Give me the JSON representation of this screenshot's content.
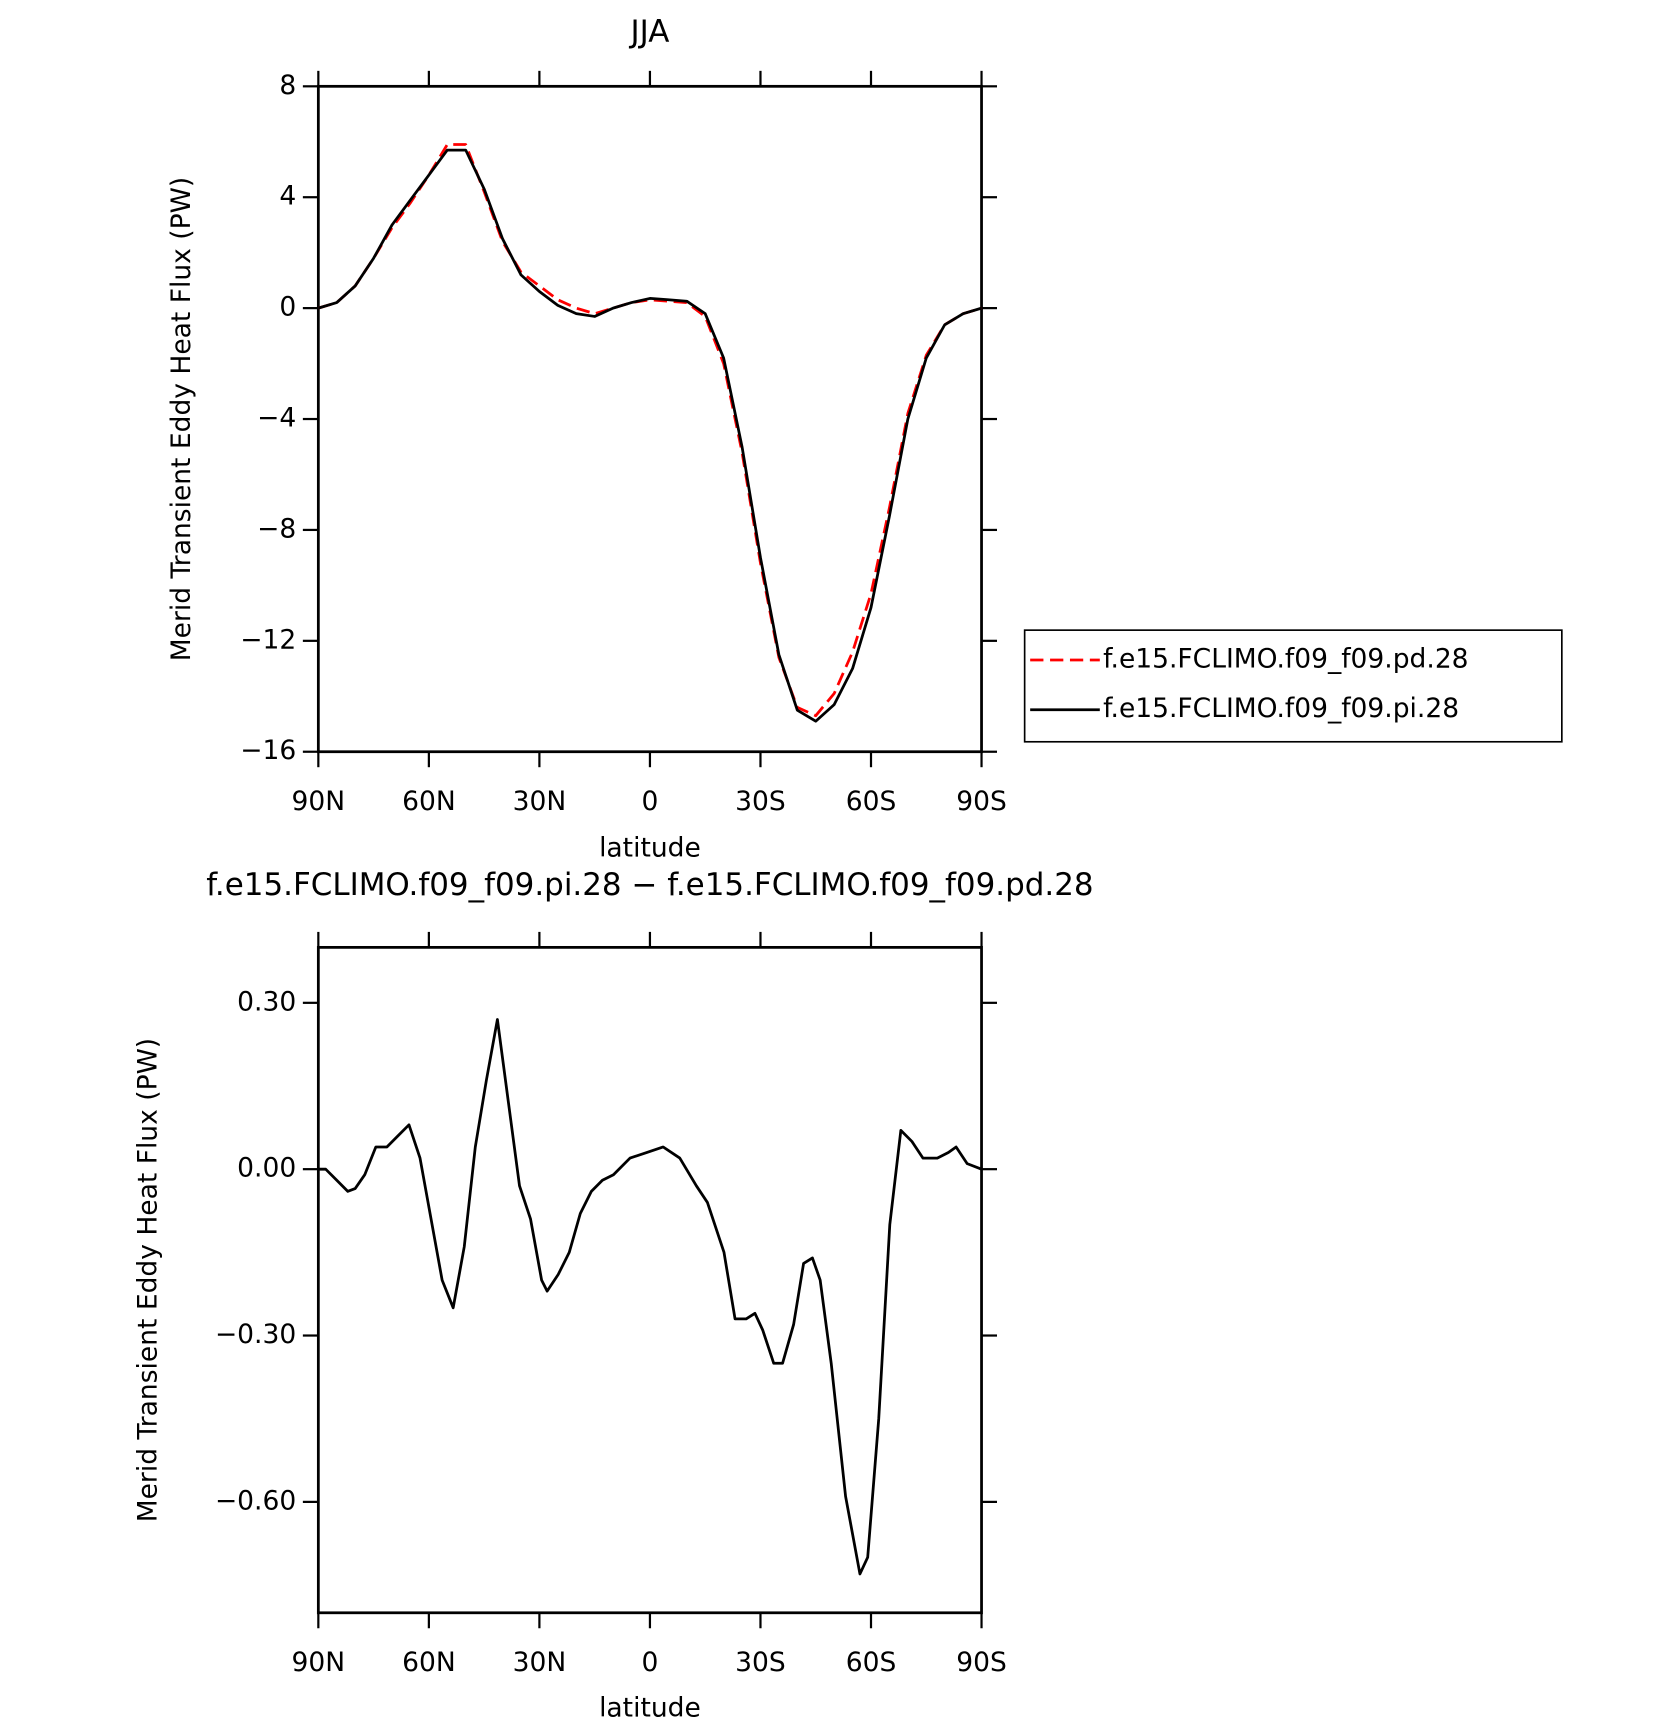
{
  "chart_data": [
    {
      "type": "line",
      "title": "JJA",
      "xlabel": "latitude",
      "ylabel": "Merid Transient Eddy Heat Flux (PW)",
      "x": [
        90,
        85,
        80,
        75,
        70,
        65,
        60,
        55,
        50,
        45,
        40,
        35,
        30,
        25,
        20,
        15,
        10,
        5,
        0,
        -5,
        -10,
        -15,
        -20,
        -25,
        -30,
        -35,
        -40,
        -45,
        -50,
        -55,
        -60,
        -65,
        -70,
        -75,
        -80,
        -85,
        -90
      ],
      "xlim": [
        90,
        -90
      ],
      "xticks": [
        {
          "value": 90,
          "label": "90N"
        },
        {
          "value": 60,
          "label": "60N"
        },
        {
          "value": 30,
          "label": "30N"
        },
        0,
        {
          "value": -30,
          "label": "30S"
        },
        {
          "value": -60,
          "label": "60S"
        },
        {
          "value": -90,
          "label": "90S"
        }
      ],
      "ylim": [
        -16,
        8
      ],
      "yticks": [
        {
          "value": -16,
          "label": "−16"
        },
        {
          "value": -12,
          "label": "−12"
        },
        {
          "value": -8,
          "label": "−8"
        },
        {
          "value": -4,
          "label": "−4"
        },
        0,
        4,
        8
      ],
      "legend": "right",
      "series": [
        {
          "name": "f.e15.FCLIMO.f09_f09.pd.28",
          "color": "#ff0000",
          "dashed": true,
          "values": [
            0,
            0.2,
            0.8,
            1.8,
            2.9,
            3.8,
            4.8,
            5.9,
            5.9,
            4.2,
            2.4,
            1.3,
            0.8,
            0.3,
            0.0,
            -0.2,
            0.0,
            0.2,
            0.3,
            0.25,
            0.2,
            -0.3,
            -2.0,
            -5.2,
            -9.2,
            -12.6,
            -14.4,
            -14.7,
            -13.9,
            -12.4,
            -10.3,
            -7.2,
            -3.8,
            -1.7,
            -0.6,
            -0.2,
            0
          ]
        },
        {
          "name": "f.e15.FCLIMO.f09_f09.pi.28",
          "color": "#000000",
          "dashed": false,
          "values": [
            0,
            0.2,
            0.8,
            1.8,
            3.0,
            3.9,
            4.8,
            5.7,
            5.7,
            4.3,
            2.5,
            1.2,
            0.6,
            0.1,
            -0.2,
            -0.3,
            0.0,
            0.2,
            0.35,
            0.3,
            0.25,
            -0.2,
            -1.8,
            -5.0,
            -9.0,
            -12.5,
            -14.5,
            -14.9,
            -14.3,
            -13.0,
            -10.8,
            -7.5,
            -4.0,
            -1.8,
            -0.6,
            -0.2,
            0
          ]
        }
      ]
    },
    {
      "type": "line",
      "title": "f.e15.FCLIMO.f09_f09.pi.28 − f.e15.FCLIMO.f09_f09.pd.28",
      "xlabel": "latitude",
      "ylabel": "Merid Transient Eddy Heat Flux (PW)",
      "x": [
        90,
        88,
        85,
        82,
        80,
        77.4,
        74.4,
        71.4,
        68.4,
        65.4,
        62.4,
        59.4,
        56.4,
        53.4,
        50.4,
        47.4,
        44.4,
        41.4,
        38.4,
        35.4,
        32.4,
        29.4,
        27.9,
        24.9,
        21.9,
        18.9,
        15.9,
        12.9,
        9.9,
        5.4,
        0.9,
        -3.6,
        -8.1,
        -12.6,
        -15.6,
        -20.1,
        -23.1,
        -26.1,
        -28.5,
        -30.6,
        -33.6,
        -36,
        -39,
        -41.7,
        -44.1,
        -46.2,
        -49.2,
        -53.1,
        -57,
        -59.1,
        -62.1,
        -65.1,
        -68.1,
        -71.1,
        -74.1,
        -75.6,
        -78,
        -81,
        -83.1,
        -86.1,
        -90
      ],
      "xlim": [
        90,
        -90
      ],
      "xticks": [
        {
          "value": 90,
          "label": "90N"
        },
        {
          "value": 60,
          "label": "60N"
        },
        {
          "value": 30,
          "label": "30N"
        },
        0,
        {
          "value": -30,
          "label": "30S"
        },
        {
          "value": -60,
          "label": "60S"
        },
        {
          "value": -90,
          "label": "90S"
        }
      ],
      "ylim": [
        -0.8,
        0.4
      ],
      "yticks": [
        {
          "value": -0.6,
          "label": "−0.60"
        },
        {
          "value": -0.3,
          "label": "−0.30"
        },
        {
          "value": 0,
          "label": "0.00"
        },
        {
          "value": 0.3,
          "label": "0.30"
        }
      ],
      "series": [
        {
          "color": "#000000",
          "dashed": false,
          "values": [
            0,
            0,
            -0.02,
            -0.04,
            -0.035,
            -0.01,
            0.04,
            0.04,
            0.06,
            0.08,
            0.02,
            -0.09,
            -0.2,
            -0.25,
            -0.14,
            0.04,
            0.16,
            0.27,
            0.12,
            -0.03,
            -0.09,
            -0.2,
            -0.22,
            -0.19,
            -0.15,
            -0.08,
            -0.04,
            -0.02,
            -0.01,
            0.02,
            0.03,
            0.04,
            0.02,
            -0.03,
            -0.06,
            -0.15,
            -0.27,
            -0.27,
            -0.26,
            -0.29,
            -0.35,
            -0.35,
            -0.28,
            -0.17,
            -0.16,
            -0.2,
            -0.35,
            -0.59,
            -0.73,
            -0.7,
            -0.45,
            -0.1,
            0.07,
            0.05,
            0.02,
            0.02,
            0.02,
            0.03,
            0.04,
            0.01,
            0
          ]
        }
      ]
    }
  ]
}
